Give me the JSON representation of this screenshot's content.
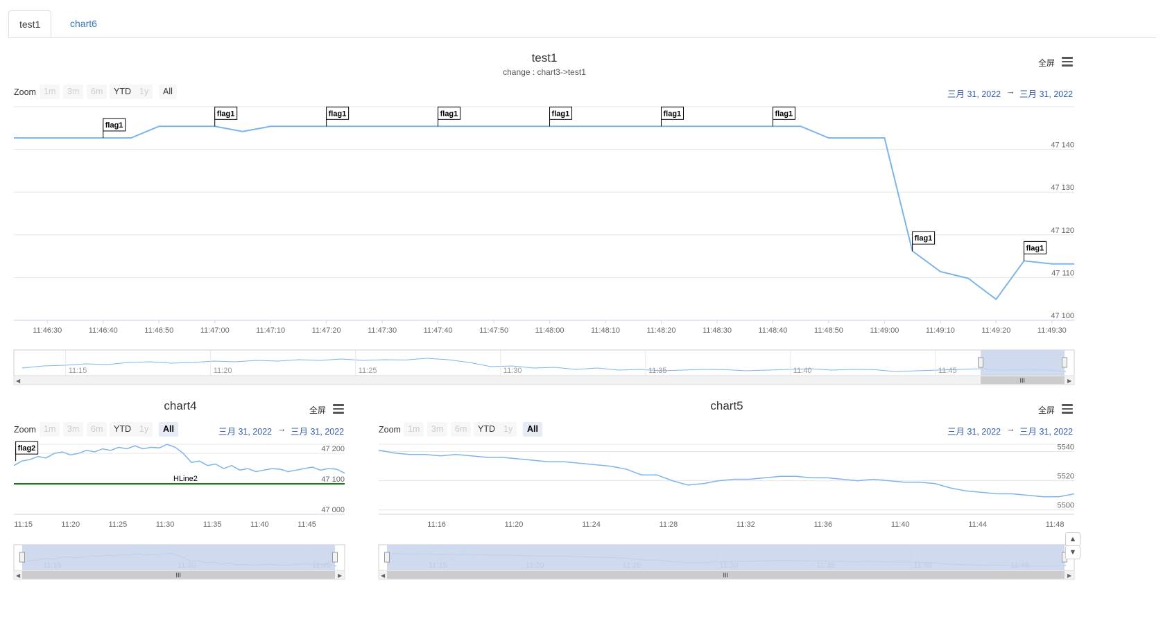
{
  "tabs": [
    {
      "label": "test1"
    },
    {
      "label": "chart6"
    }
  ],
  "common": {
    "fullscreen": "全屏",
    "zoom": "Zoom",
    "zoom_buttons": [
      "1m",
      "3m",
      "6m",
      "YTD",
      "1y",
      "All"
    ],
    "date_from": "三月 31, 2022",
    "date_arrow": "→",
    "date_to": "三月 31, 2022"
  },
  "chart_data": [
    {
      "type": "line",
      "title": "test1",
      "subtitle": "change : chart3->test1",
      "x": [
        "11:46:24",
        "11:46:40",
        "11:46:45",
        "11:46:50",
        "11:47:00",
        "11:47:05",
        "11:47:10",
        "11:47:20",
        "11:47:40",
        "11:48:00",
        "11:48:20",
        "11:48:40",
        "11:48:45",
        "11:48:50",
        "11:48:55",
        "11:49:00",
        "11:49:05",
        "11:49:10",
        "11:49:15",
        "11:49:20",
        "11:49:25",
        "11:49:30",
        "11:49:34"
      ],
      "values": [
        47142.7,
        47142.7,
        47142.7,
        47145.4,
        47145.4,
        47144.2,
        47145.4,
        47145.4,
        47145.4,
        47145.4,
        47145.4,
        47145.4,
        47145.4,
        47142.7,
        47142.7,
        47142.7,
        47116.2,
        47111.4,
        47109.8,
        47104.9,
        47113.9,
        47113.2,
        47113.2
      ],
      "xticks": [
        "11:46:30",
        "11:46:40",
        "11:46:50",
        "11:47:00",
        "11:47:10",
        "11:47:20",
        "11:47:30",
        "11:47:40",
        "11:47:50",
        "11:48:00",
        "11:48:10",
        "11:48:20",
        "11:48:30",
        "11:48:40",
        "11:48:50",
        "11:49:00",
        "11:49:10",
        "11:49:20",
        "11:49:30"
      ],
      "yticks": [
        "47 100",
        "47 110",
        "47 120",
        "47 130",
        "47 140"
      ],
      "ylim": [
        47100,
        47150
      ],
      "flags": [
        {
          "x": "11:46:40",
          "label": "flag1"
        },
        {
          "x": "11:47:00",
          "label": "flag1"
        },
        {
          "x": "11:47:20",
          "label": "flag1"
        },
        {
          "x": "11:47:40",
          "label": "flag1"
        },
        {
          "x": "11:48:00",
          "label": "flag1"
        },
        {
          "x": "11:48:20",
          "label": "flag1"
        },
        {
          "x": "11:48:40",
          "label": "flag1"
        },
        {
          "x": "11:49:05",
          "label": "flag1"
        },
        {
          "x": "11:49:25",
          "label": "flag1"
        }
      ],
      "navigator_ticks": [
        "11:15",
        "11:20",
        "11:25",
        "11:30",
        "11:35",
        "11:40",
        "11:45"
      ],
      "selected_zoom": "none"
    },
    {
      "type": "line",
      "title": "chart4",
      "x_range": [
        "11:14",
        "11:49"
      ],
      "values": [
        47160,
        47175,
        47180,
        47190,
        47185,
        47200,
        47205,
        47195,
        47200,
        47210,
        47205,
        47215,
        47210,
        47220,
        47215,
        47225,
        47215,
        47220,
        47218,
        47230,
        47220,
        47200,
        47170,
        47175,
        47160,
        47165,
        47150,
        47160,
        47145,
        47150,
        47140,
        47145,
        47150,
        47148,
        47140,
        47145,
        47150,
        47155,
        47145,
        47150,
        47148,
        47135
      ],
      "yticks": [
        "47 000",
        "47 100",
        "47 200"
      ],
      "ylim": [
        47000,
        47230
      ],
      "xticks": [
        "11:15",
        "11:20",
        "11:25",
        "11:30",
        "11:35",
        "11:40",
        "11:45"
      ],
      "hline": {
        "label": "HLine2",
        "value": 47100,
        "color": "#006400"
      },
      "flags": [
        {
          "x": "11:15",
          "label": "flag2"
        }
      ],
      "navigator_ticks": [
        "11:15",
        "11:30",
        "11:45"
      ],
      "selected_zoom": "All"
    },
    {
      "type": "line",
      "title": "chart5",
      "x_range": [
        "11:13",
        "11:49"
      ],
      "values": [
        5541,
        5539,
        5538,
        5538,
        5537,
        5538,
        5537,
        5536,
        5536,
        5535,
        5534,
        5533,
        5533,
        5532,
        5531,
        5530,
        5528,
        5524,
        5524,
        5520,
        5517,
        5518,
        5520,
        5521,
        5521,
        5522,
        5523,
        5523,
        5522,
        5522,
        5521,
        5520,
        5521,
        5520,
        5519,
        5519,
        5518,
        5515,
        5513,
        5512,
        5511,
        5511,
        5510,
        5509,
        5509,
        5511
      ],
      "yticks": [
        "5500",
        "5520",
        "5540"
      ],
      "ylim": [
        5497,
        5545
      ],
      "xticks": [
        "11:16",
        "11:20",
        "11:24",
        "11:28",
        "11:32",
        "11:36",
        "11:40",
        "11:44",
        "11:48"
      ],
      "navigator_ticks": [
        "11:15",
        "11:20",
        "11:25",
        "11:30",
        "11:35",
        "11:40",
        "11:45"
      ],
      "selected_zoom": "All"
    }
  ],
  "colors": {
    "series": "#7cb5ec",
    "grid": "#e6e6e6",
    "hline": "#006400",
    "date": "#335cad",
    "nav_mask": "#c8d3ec"
  }
}
